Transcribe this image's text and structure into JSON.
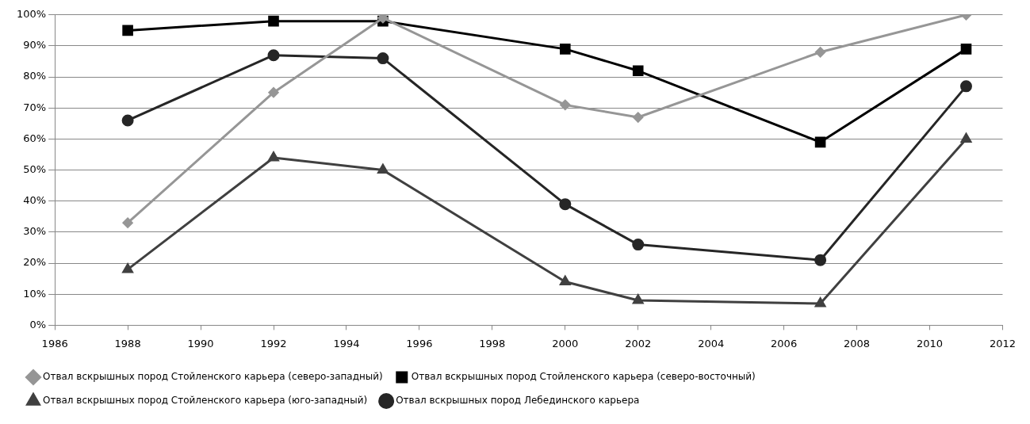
{
  "chart_data": {
    "type": "line",
    "x": [
      1988,
      1992,
      1995,
      2000,
      2002,
      2007,
      2011
    ],
    "series": [
      {
        "name": "Отвал вскрышных пород Стойленского карьера (северо-западный)",
        "color": "#969696",
        "marker": "diamond",
        "values": [
          33,
          75,
          99,
          71,
          67,
          88,
          100
        ]
      },
      {
        "name": "Отвал вскрышных пород Стойленского карьера (северо-восточный)",
        "color": "#000000",
        "marker": "square",
        "values": [
          95,
          98,
          98,
          89,
          82,
          59,
          89
        ]
      },
      {
        "name": "Отвал вскрышных пород Стойленского карьера (юго-западный)",
        "color": "#404040",
        "marker": "triangle",
        "values": [
          18,
          54,
          50,
          14,
          8,
          7,
          60
        ]
      },
      {
        "name": "Отвал вскрышных пород Лебединского карьера",
        "color": "#262626",
        "marker": "circle",
        "values": [
          66,
          87,
          86,
          39,
          26,
          21,
          77
        ]
      }
    ],
    "xlim": [
      1986,
      2012
    ],
    "xticks": [
      1986,
      1988,
      1990,
      1992,
      1994,
      1996,
      1998,
      2000,
      2002,
      2004,
      2006,
      2008,
      2010,
      2012
    ],
    "ylim": [
      0,
      100
    ],
    "yticks": [
      {
        "value": 0,
        "label": "0%"
      },
      {
        "value": 10,
        "label": "10%"
      },
      {
        "value": 20,
        "label": "20%"
      },
      {
        "value": 30,
        "label": "30%"
      },
      {
        "value": 40,
        "label": "40%"
      },
      {
        "value": 50,
        "label": "50%"
      },
      {
        "value": 60,
        "label": "60%"
      },
      {
        "value": 70,
        "label": "70%"
      },
      {
        "value": 80,
        "label": "80%"
      },
      {
        "value": 90,
        "label": "90%"
      },
      {
        "value": 100,
        "label": "100%"
      }
    ],
    "grid": "y",
    "legend": "bottom",
    "line_style": "solid"
  }
}
